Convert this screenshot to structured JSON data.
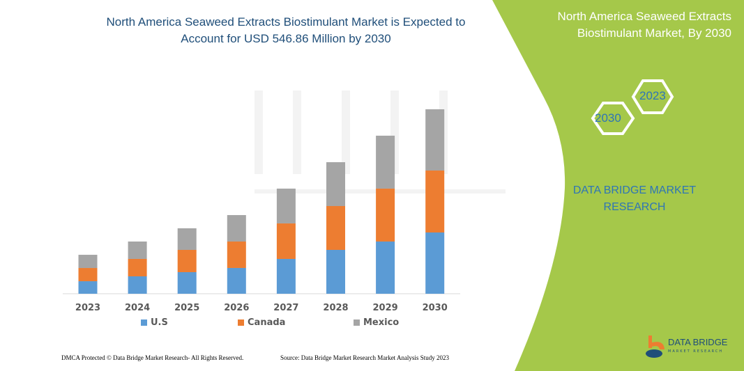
{
  "title": "North America Seaweed Extracts Biostimulant Market is Expected to Account for USD 546.86 Million by 2030",
  "side_panel": {
    "title": "North America Seaweed Extracts Biostimulant Market, By 2030",
    "hex_years": [
      "2030",
      "2023"
    ],
    "brand": "DATA BRIDGE MARKET RESEARCH",
    "logo_text": "DATA BRIDGE",
    "logo_sub": "MARKET RESEARCH",
    "color": "#a5c84a"
  },
  "footer": {
    "copyright": "DMCA Protected © Data Bridge Market Research-  All Rights Reserved.",
    "source": "Source: Data Bridge Market Research  Market Analysis Study 2023"
  },
  "chart_data": {
    "type": "bar",
    "stacked": true,
    "categories": [
      "2023",
      "2024",
      "2025",
      "2026",
      "2027",
      "2028",
      "2029",
      "2030"
    ],
    "series": [
      {
        "name": "U.S",
        "color": "#5b9bd5",
        "values": [
          37.1,
          51.6,
          64.0,
          76.4,
          103.2,
          130.0,
          154.8,
          181.6
        ]
      },
      {
        "name": "Canada",
        "color": "#ed7d31",
        "values": [
          39.2,
          51.6,
          66.0,
          78.4,
          105.3,
          130.0,
          156.9,
          183.7
        ]
      },
      {
        "name": "Mexico",
        "color": "#a5a5a5",
        "values": [
          39.2,
          51.6,
          64.0,
          78.4,
          103.2,
          130.0,
          156.9,
          181.6
        ]
      }
    ],
    "ylabel": "",
    "xlabel": "",
    "y_axis_shown": false,
    "grid": false,
    "legend": "bottom"
  }
}
